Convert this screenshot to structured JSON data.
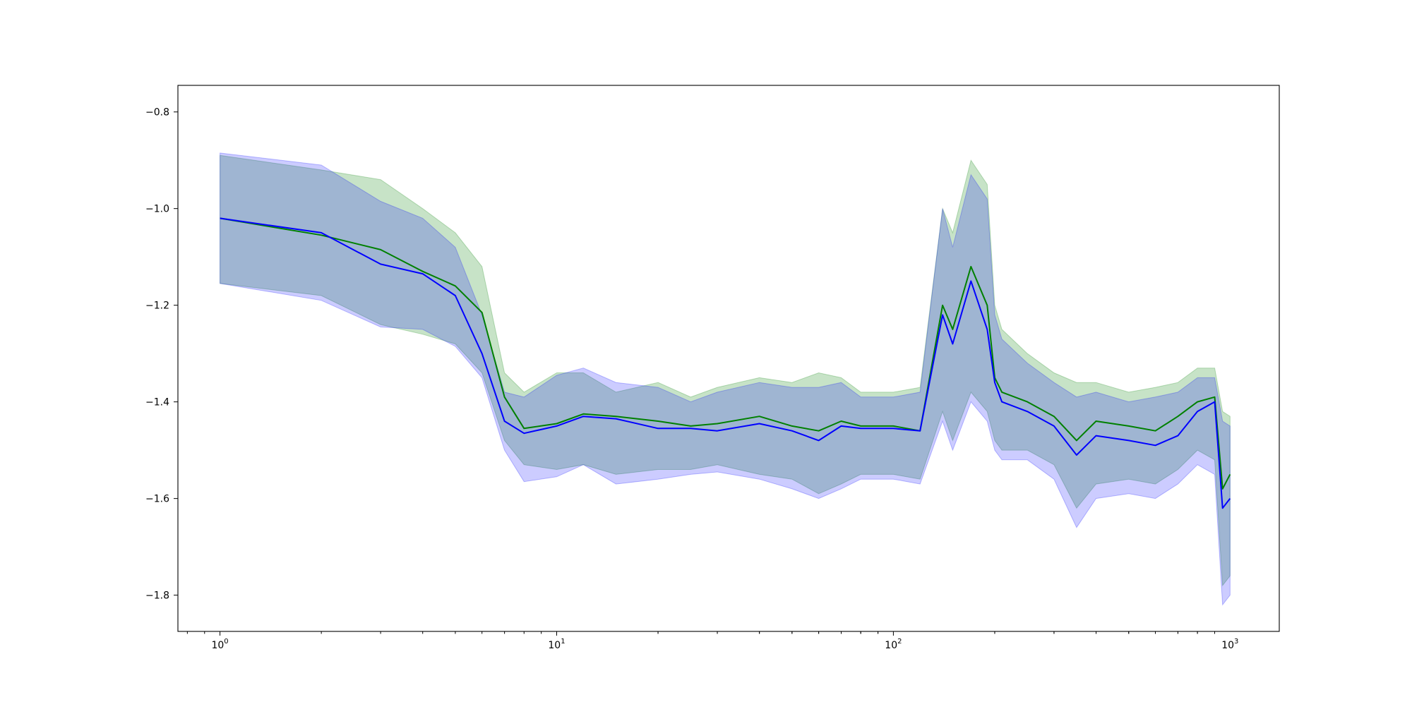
{
  "chart_data": {
    "type": "line",
    "title": "",
    "xlabel": "",
    "ylabel": "",
    "xscale": "log",
    "xlim": [
      0.75,
      1400
    ],
    "ylim": [
      -1.875,
      -0.745
    ],
    "grid": false,
    "legend": "none",
    "x_ticks": [
      {
        "value": 1,
        "base": "10",
        "exp": "0"
      },
      {
        "value": 10,
        "base": "10",
        "exp": "1"
      },
      {
        "value": 100,
        "base": "10",
        "exp": "2"
      },
      {
        "value": 1000,
        "base": "10",
        "exp": "3"
      }
    ],
    "y_ticks": [
      {
        "value": -0.8,
        "label": "−0.8"
      },
      {
        "value": -1.0,
        "label": "−1.0"
      },
      {
        "value": -1.2,
        "label": "−1.2"
      },
      {
        "value": -1.4,
        "label": "−1.4"
      },
      {
        "value": -1.6,
        "label": "−1.6"
      },
      {
        "value": -1.8,
        "label": "−1.8"
      }
    ],
    "series": [
      {
        "color": "#008000",
        "band_opacity": 0.22,
        "x": [
          1,
          2,
          3,
          4,
          5,
          6,
          7,
          8,
          10,
          12,
          15,
          20,
          25,
          30,
          40,
          50,
          60,
          70,
          80,
          100,
          120,
          140,
          150,
          170,
          190,
          200,
          210,
          250,
          300,
          350,
          400,
          500,
          600,
          700,
          800,
          900,
          950,
          1000
        ],
        "y": [
          -1.02,
          -1.055,
          -1.085,
          -1.13,
          -1.16,
          -1.215,
          -1.39,
          -1.455,
          -1.445,
          -1.425,
          -1.43,
          -1.44,
          -1.45,
          -1.445,
          -1.43,
          -1.45,
          -1.46,
          -1.44,
          -1.45,
          -1.45,
          -1.46,
          -1.2,
          -1.25,
          -1.12,
          -1.2,
          -1.35,
          -1.38,
          -1.4,
          -1.43,
          -1.48,
          -1.44,
          -1.45,
          -1.46,
          -1.43,
          -1.4,
          -1.39,
          -1.58,
          -1.55
        ],
        "upper": [
          -0.89,
          -0.92,
          -0.94,
          -1.0,
          -1.05,
          -1.12,
          -1.34,
          -1.38,
          -1.34,
          -1.34,
          -1.38,
          -1.36,
          -1.39,
          -1.37,
          -1.35,
          -1.36,
          -1.34,
          -1.35,
          -1.38,
          -1.38,
          -1.37,
          -1.0,
          -1.05,
          -0.9,
          -0.95,
          -1.2,
          -1.25,
          -1.3,
          -1.34,
          -1.36,
          -1.36,
          -1.38,
          -1.37,
          -1.36,
          -1.33,
          -1.33,
          -1.42,
          -1.43
        ],
        "lower": [
          -1.155,
          -1.18,
          -1.24,
          -1.26,
          -1.28,
          -1.34,
          -1.48,
          -1.53,
          -1.54,
          -1.53,
          -1.55,
          -1.54,
          -1.54,
          -1.53,
          -1.55,
          -1.56,
          -1.59,
          -1.57,
          -1.55,
          -1.55,
          -1.56,
          -1.42,
          -1.48,
          -1.38,
          -1.42,
          -1.48,
          -1.5,
          -1.5,
          -1.53,
          -1.62,
          -1.57,
          -1.56,
          -1.57,
          -1.54,
          -1.5,
          -1.52,
          -1.78,
          -1.76
        ]
      },
      {
        "color": "#0000ff",
        "band_opacity": 0.2,
        "x": [
          1,
          2,
          3,
          4,
          5,
          6,
          7,
          8,
          10,
          12,
          15,
          20,
          25,
          30,
          40,
          50,
          60,
          70,
          80,
          100,
          120,
          140,
          150,
          170,
          190,
          200,
          210,
          250,
          300,
          350,
          400,
          500,
          600,
          700,
          800,
          900,
          950,
          1000
        ],
        "y": [
          -1.02,
          -1.05,
          -1.115,
          -1.135,
          -1.18,
          -1.3,
          -1.44,
          -1.465,
          -1.45,
          -1.43,
          -1.435,
          -1.455,
          -1.455,
          -1.46,
          -1.445,
          -1.46,
          -1.48,
          -1.45,
          -1.455,
          -1.455,
          -1.46,
          -1.22,
          -1.28,
          -1.15,
          -1.25,
          -1.36,
          -1.4,
          -1.42,
          -1.45,
          -1.51,
          -1.47,
          -1.48,
          -1.49,
          -1.47,
          -1.42,
          -1.4,
          -1.62,
          -1.6
        ],
        "upper": [
          -0.885,
          -0.91,
          -0.985,
          -1.02,
          -1.08,
          -1.22,
          -1.38,
          -1.39,
          -1.345,
          -1.33,
          -1.36,
          -1.37,
          -1.4,
          -1.38,
          -1.36,
          -1.37,
          -1.37,
          -1.36,
          -1.39,
          -1.39,
          -1.38,
          -1.0,
          -1.08,
          -0.93,
          -0.98,
          -1.22,
          -1.27,
          -1.32,
          -1.36,
          -1.39,
          -1.38,
          -1.4,
          -1.39,
          -1.38,
          -1.35,
          -1.35,
          -1.44,
          -1.45
        ],
        "lower": [
          -1.155,
          -1.19,
          -1.245,
          -1.25,
          -1.285,
          -1.35,
          -1.5,
          -1.565,
          -1.555,
          -1.53,
          -1.57,
          -1.56,
          -1.55,
          -1.545,
          -1.56,
          -1.58,
          -1.6,
          -1.58,
          -1.56,
          -1.56,
          -1.57,
          -1.44,
          -1.5,
          -1.4,
          -1.44,
          -1.5,
          -1.52,
          -1.52,
          -1.56,
          -1.66,
          -1.6,
          -1.59,
          -1.6,
          -1.57,
          -1.53,
          -1.55,
          -1.82,
          -1.8
        ]
      }
    ]
  }
}
